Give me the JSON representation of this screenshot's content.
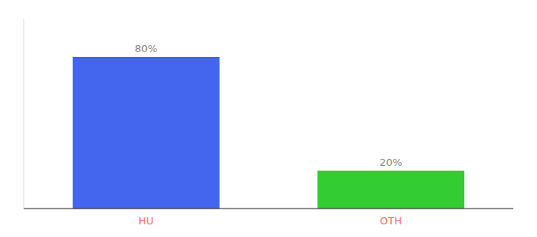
{
  "chart_data": {
    "type": "bar",
    "categories": [
      "HU",
      "OTH"
    ],
    "values": [
      80,
      20
    ],
    "value_labels": [
      "80%",
      "20%"
    ],
    "colors": [
      "#4466ee",
      "#33cc33"
    ],
    "ylim": [
      0,
      100
    ],
    "data_labels": true,
    "tick_labels": "x",
    "grid": false
  }
}
